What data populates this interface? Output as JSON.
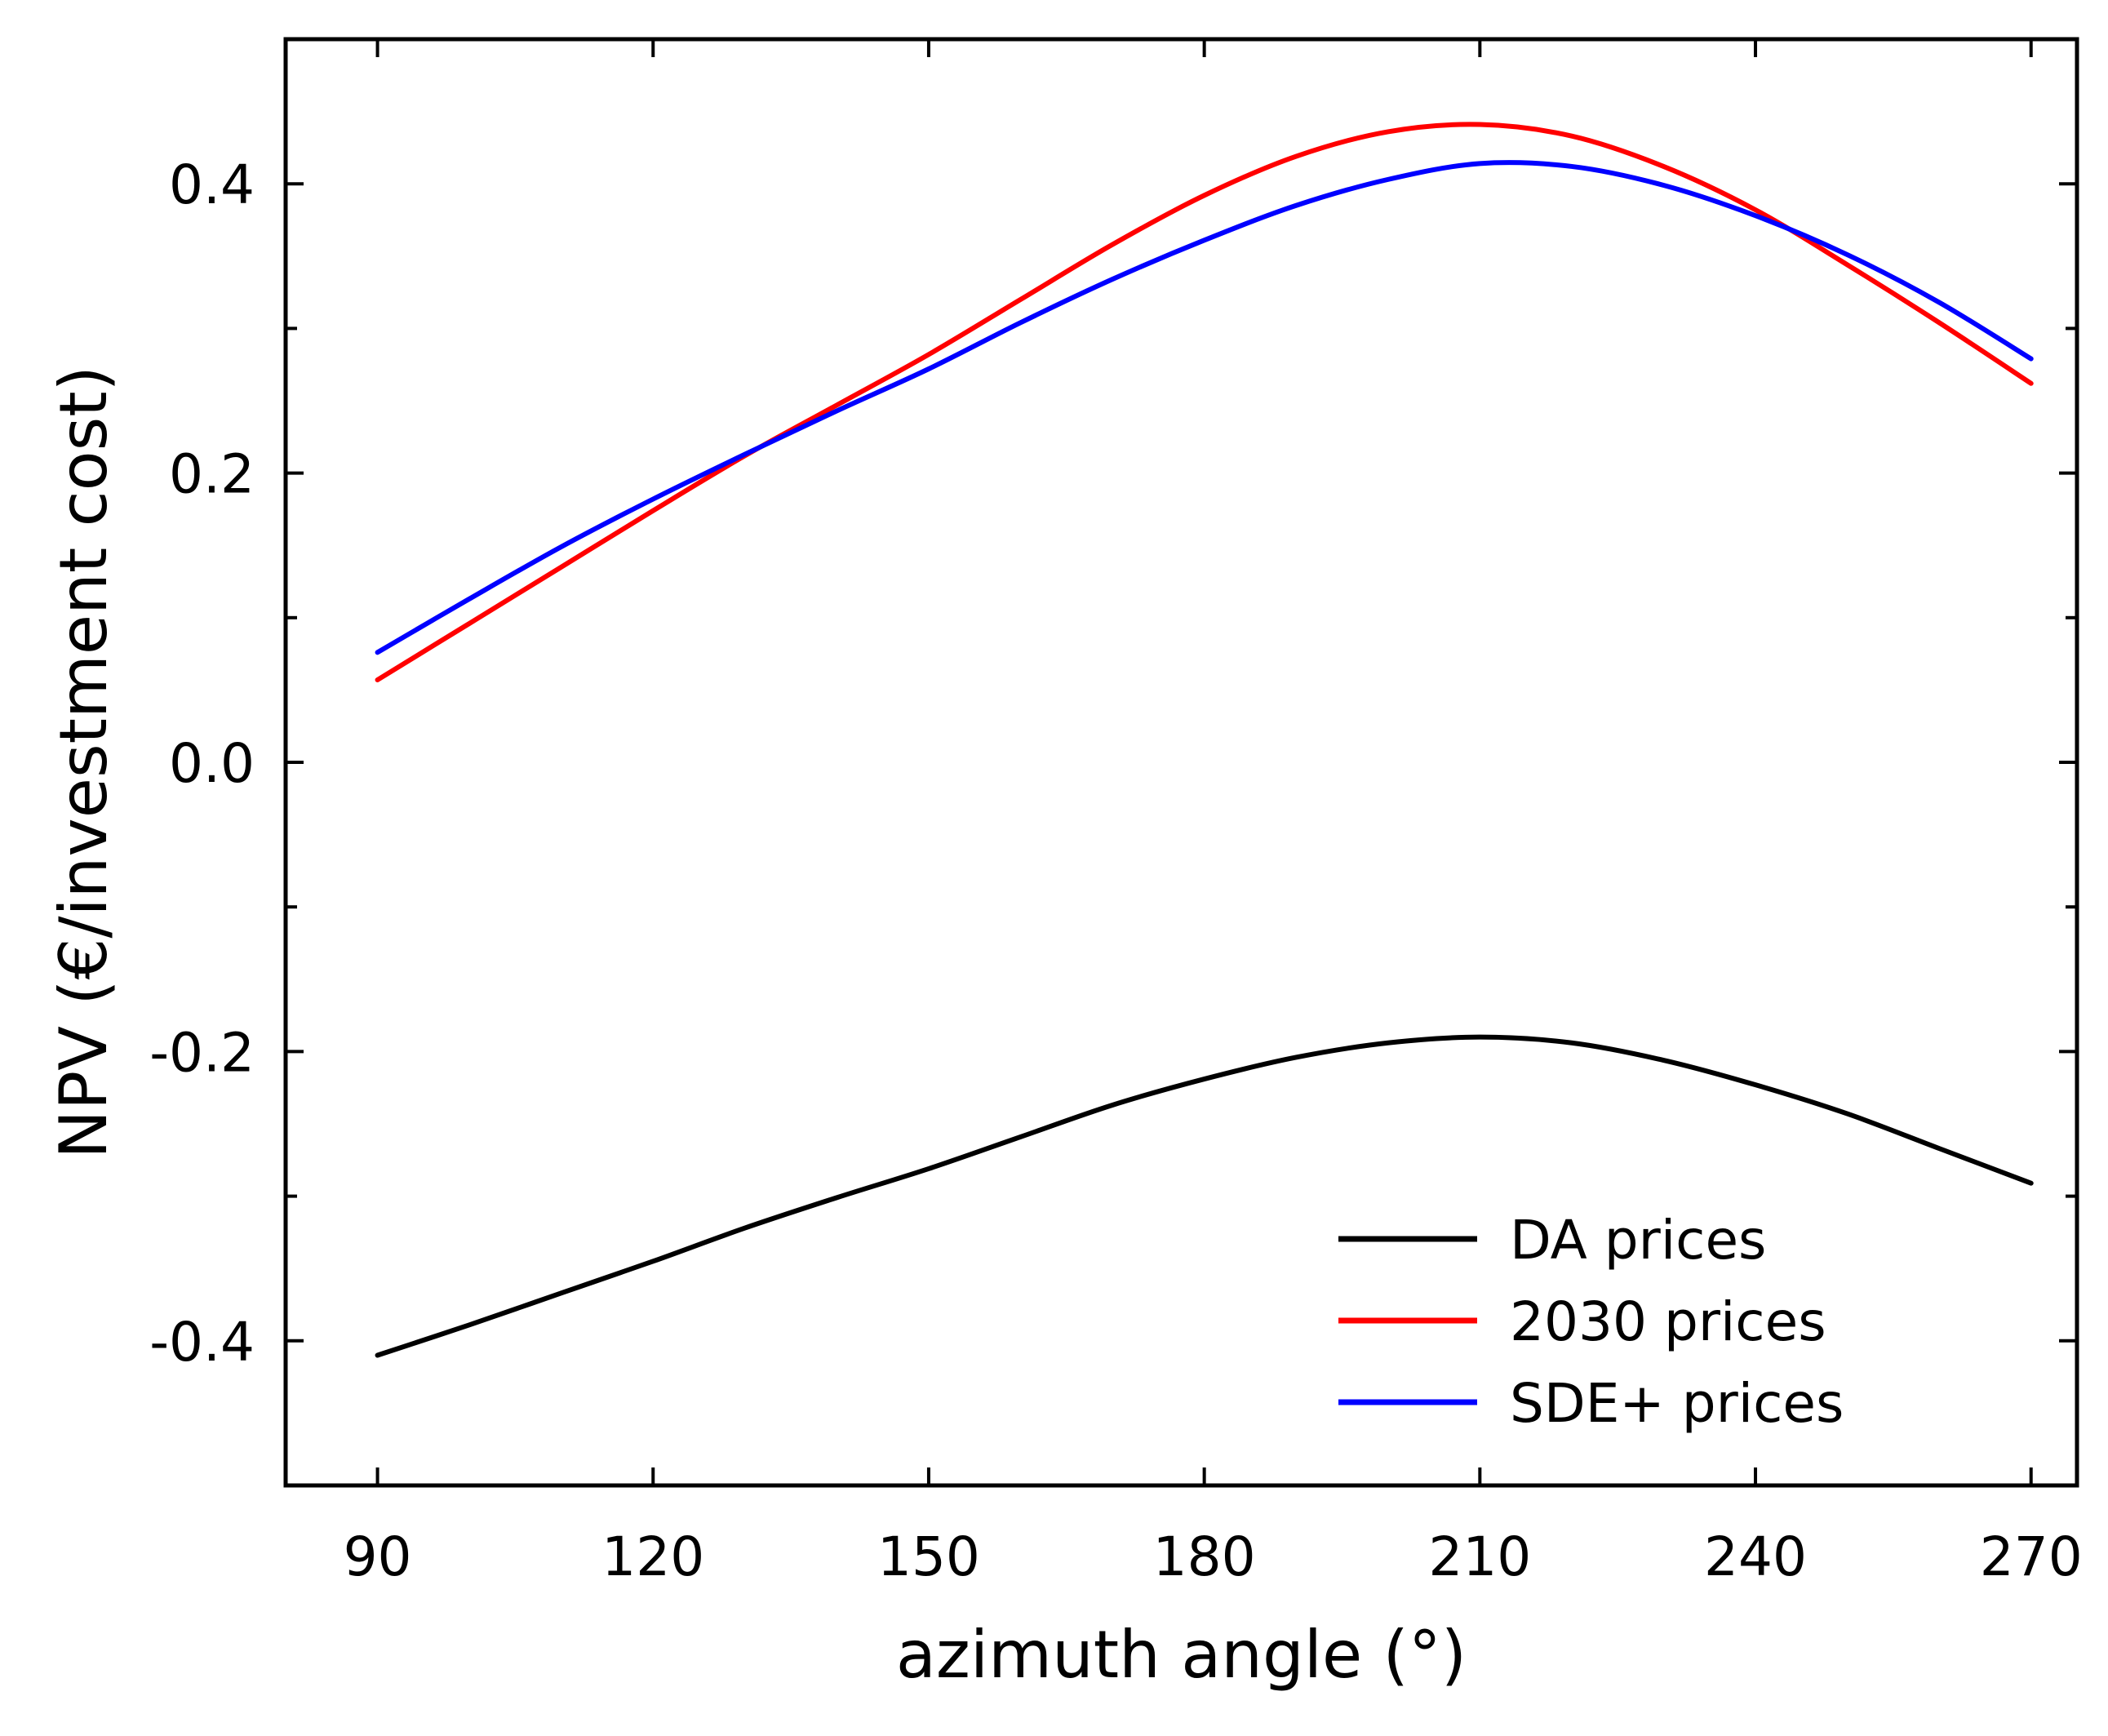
{
  "chart_data": {
    "type": "line",
    "title": "",
    "xlabel": "azimuth angle (°)",
    "ylabel": "NPV (€/investment cost)",
    "xlim": [
      80,
      275
    ],
    "ylim": [
      -0.5,
      0.5
    ],
    "xticks": [
      90,
      120,
      150,
      180,
      210,
      240,
      270
    ],
    "xtick_labels": [
      "90",
      "120",
      "150",
      "180",
      "210",
      "240",
      "270"
    ],
    "yticks": [
      -0.4,
      -0.2,
      0.0,
      0.2,
      0.4
    ],
    "ytick_labels": [
      "-0.4",
      "-0.2",
      "0.0",
      "0.2",
      "0.4"
    ],
    "y_minor_ticks": [
      -0.3,
      -0.1,
      0.1,
      0.3
    ],
    "grid": false,
    "legend_position": "bottom-right",
    "x": [
      90,
      100,
      110,
      120,
      130,
      140,
      150,
      160,
      170,
      180,
      190,
      200,
      210,
      220,
      230,
      240,
      250,
      260,
      270
    ],
    "series": [
      {
        "name": "DA prices",
        "color": "#000000",
        "values": [
          -0.41,
          -0.389,
          -0.367,
          -0.345,
          -0.322,
          -0.301,
          -0.281,
          -0.259,
          -0.237,
          -0.219,
          -0.204,
          -0.194,
          -0.19,
          -0.194,
          -0.206,
          -0.223,
          -0.243,
          -0.267,
          -0.291
        ]
      },
      {
        "name": "2030 prices",
        "color": "#ff0000",
        "values": [
          0.057,
          0.096,
          0.135,
          0.174,
          0.212,
          0.247,
          0.282,
          0.32,
          0.358,
          0.392,
          0.419,
          0.436,
          0.441,
          0.433,
          0.412,
          0.382,
          0.344,
          0.304,
          0.262
        ]
      },
      {
        "name": "SDE+ prices",
        "color": "#0000ff",
        "values": [
          0.076,
          0.113,
          0.149,
          0.182,
          0.213,
          0.243,
          0.272,
          0.304,
          0.334,
          0.361,
          0.385,
          0.403,
          0.414,
          0.412,
          0.399,
          0.378,
          0.351,
          0.318,
          0.279
        ]
      }
    ]
  }
}
